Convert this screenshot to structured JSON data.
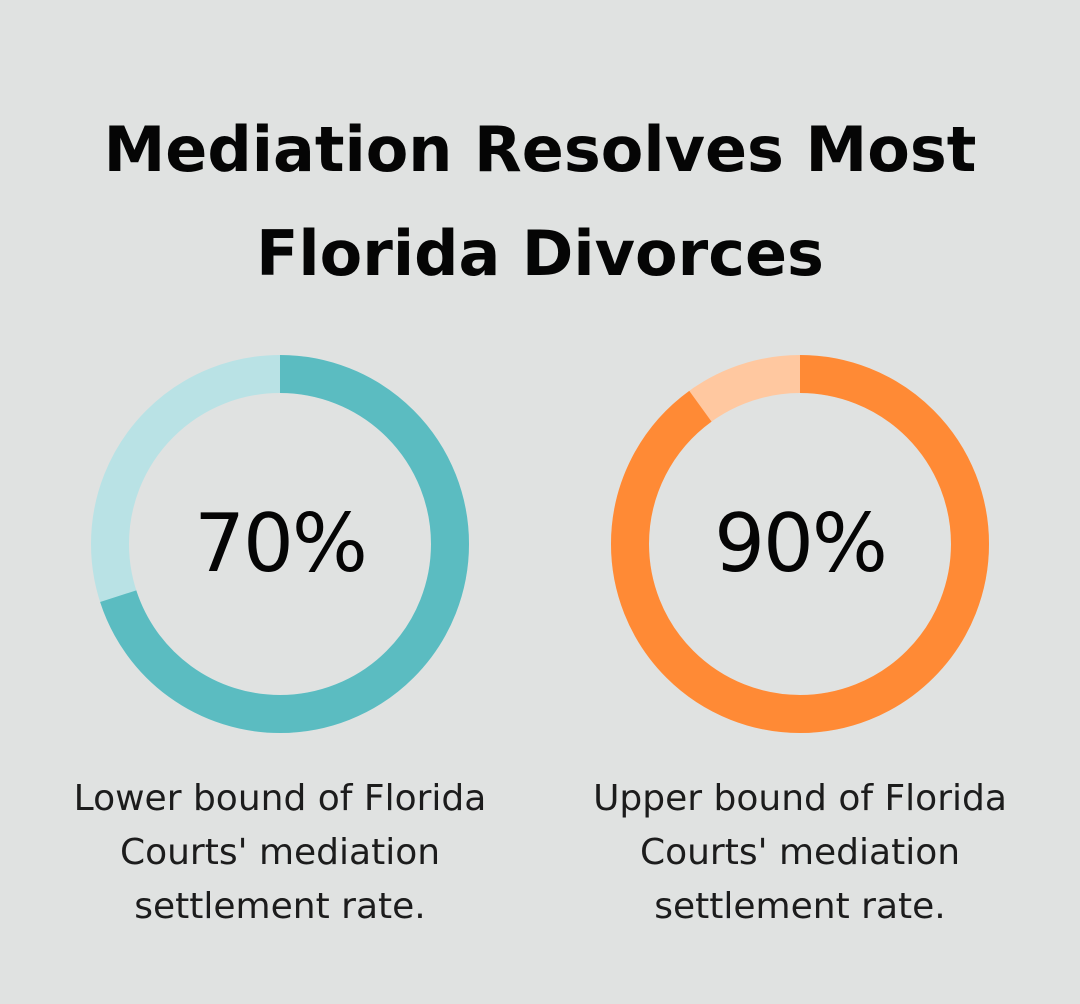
{
  "chart_data": [
    {
      "type": "pie",
      "value": 70,
      "value_label": "70%",
      "caption_lines": [
        "Lower bound of Florida",
        "Courts' mediation",
        "settlement rate."
      ],
      "fill_color": "#5bbcc1",
      "track_color": "#b9e2e5"
    },
    {
      "type": "pie",
      "value": 90,
      "value_label": "90%",
      "caption_lines": [
        "Upper bound of Florida",
        "Courts' mediation",
        "settlement rate."
      ],
      "fill_color": "#ff8a35",
      "track_color": "#ffc8a0"
    }
  ],
  "header": {
    "title_lines": [
      "Mediation Resolves Most",
      "Florida Divorces"
    ]
  }
}
